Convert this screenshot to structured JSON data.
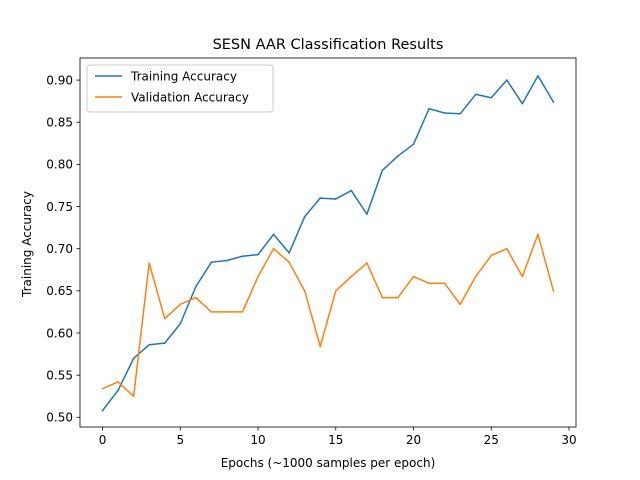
{
  "chart_data": {
    "type": "line",
    "title": "SESN AAR Classification Results",
    "xlabel": "Epochs (~1000 samples per epoch)",
    "ylabel": "Training Accuracy",
    "xlim": [
      -1.45,
      30.45
    ],
    "ylim": [
      0.4885,
      0.9262
    ],
    "xticks": [
      0,
      5,
      10,
      15,
      20,
      25,
      30
    ],
    "yticks": [
      0.5,
      0.55,
      0.6,
      0.65,
      0.7,
      0.75,
      0.8,
      0.85,
      0.9
    ],
    "ytick_labels": [
      "0.50",
      "0.55",
      "0.60",
      "0.65",
      "0.70",
      "0.75",
      "0.80",
      "0.85",
      "0.90"
    ],
    "xtick_labels": [
      "0",
      "5",
      "10",
      "15",
      "20",
      "25",
      "30"
    ],
    "legend_position": "top-left",
    "grid": false,
    "x": [
      0,
      1,
      2,
      3,
      4,
      5,
      6,
      7,
      8,
      9,
      10,
      11,
      12,
      13,
      14,
      15,
      16,
      17,
      18,
      19,
      20,
      21,
      22,
      23,
      24,
      25,
      26,
      27,
      28,
      29
    ],
    "series": [
      {
        "name": "Training Accuracy",
        "color": "#1f77b4",
        "values": [
          0.508,
          0.532,
          0.57,
          0.586,
          0.588,
          0.611,
          0.655,
          0.684,
          0.686,
          0.691,
          0.693,
          0.717,
          0.695,
          0.738,
          0.76,
          0.759,
          0.769,
          0.741,
          0.793,
          0.81,
          0.824,
          0.866,
          0.861,
          0.86,
          0.883,
          0.879,
          0.9,
          0.872,
          0.905,
          0.874
        ]
      },
      {
        "name": "Validation Accuracy",
        "color": "#ff7f0e",
        "values": [
          0.534,
          0.542,
          0.525,
          0.683,
          0.617,
          0.634,
          0.642,
          0.625,
          0.625,
          0.625,
          0.667,
          0.7,
          0.684,
          0.65,
          0.584,
          0.65,
          0.667,
          0.683,
          0.642,
          0.642,
          0.667,
          0.659,
          0.659,
          0.634,
          0.667,
          0.692,
          0.7,
          0.667,
          0.717,
          0.65
        ]
      }
    ]
  }
}
